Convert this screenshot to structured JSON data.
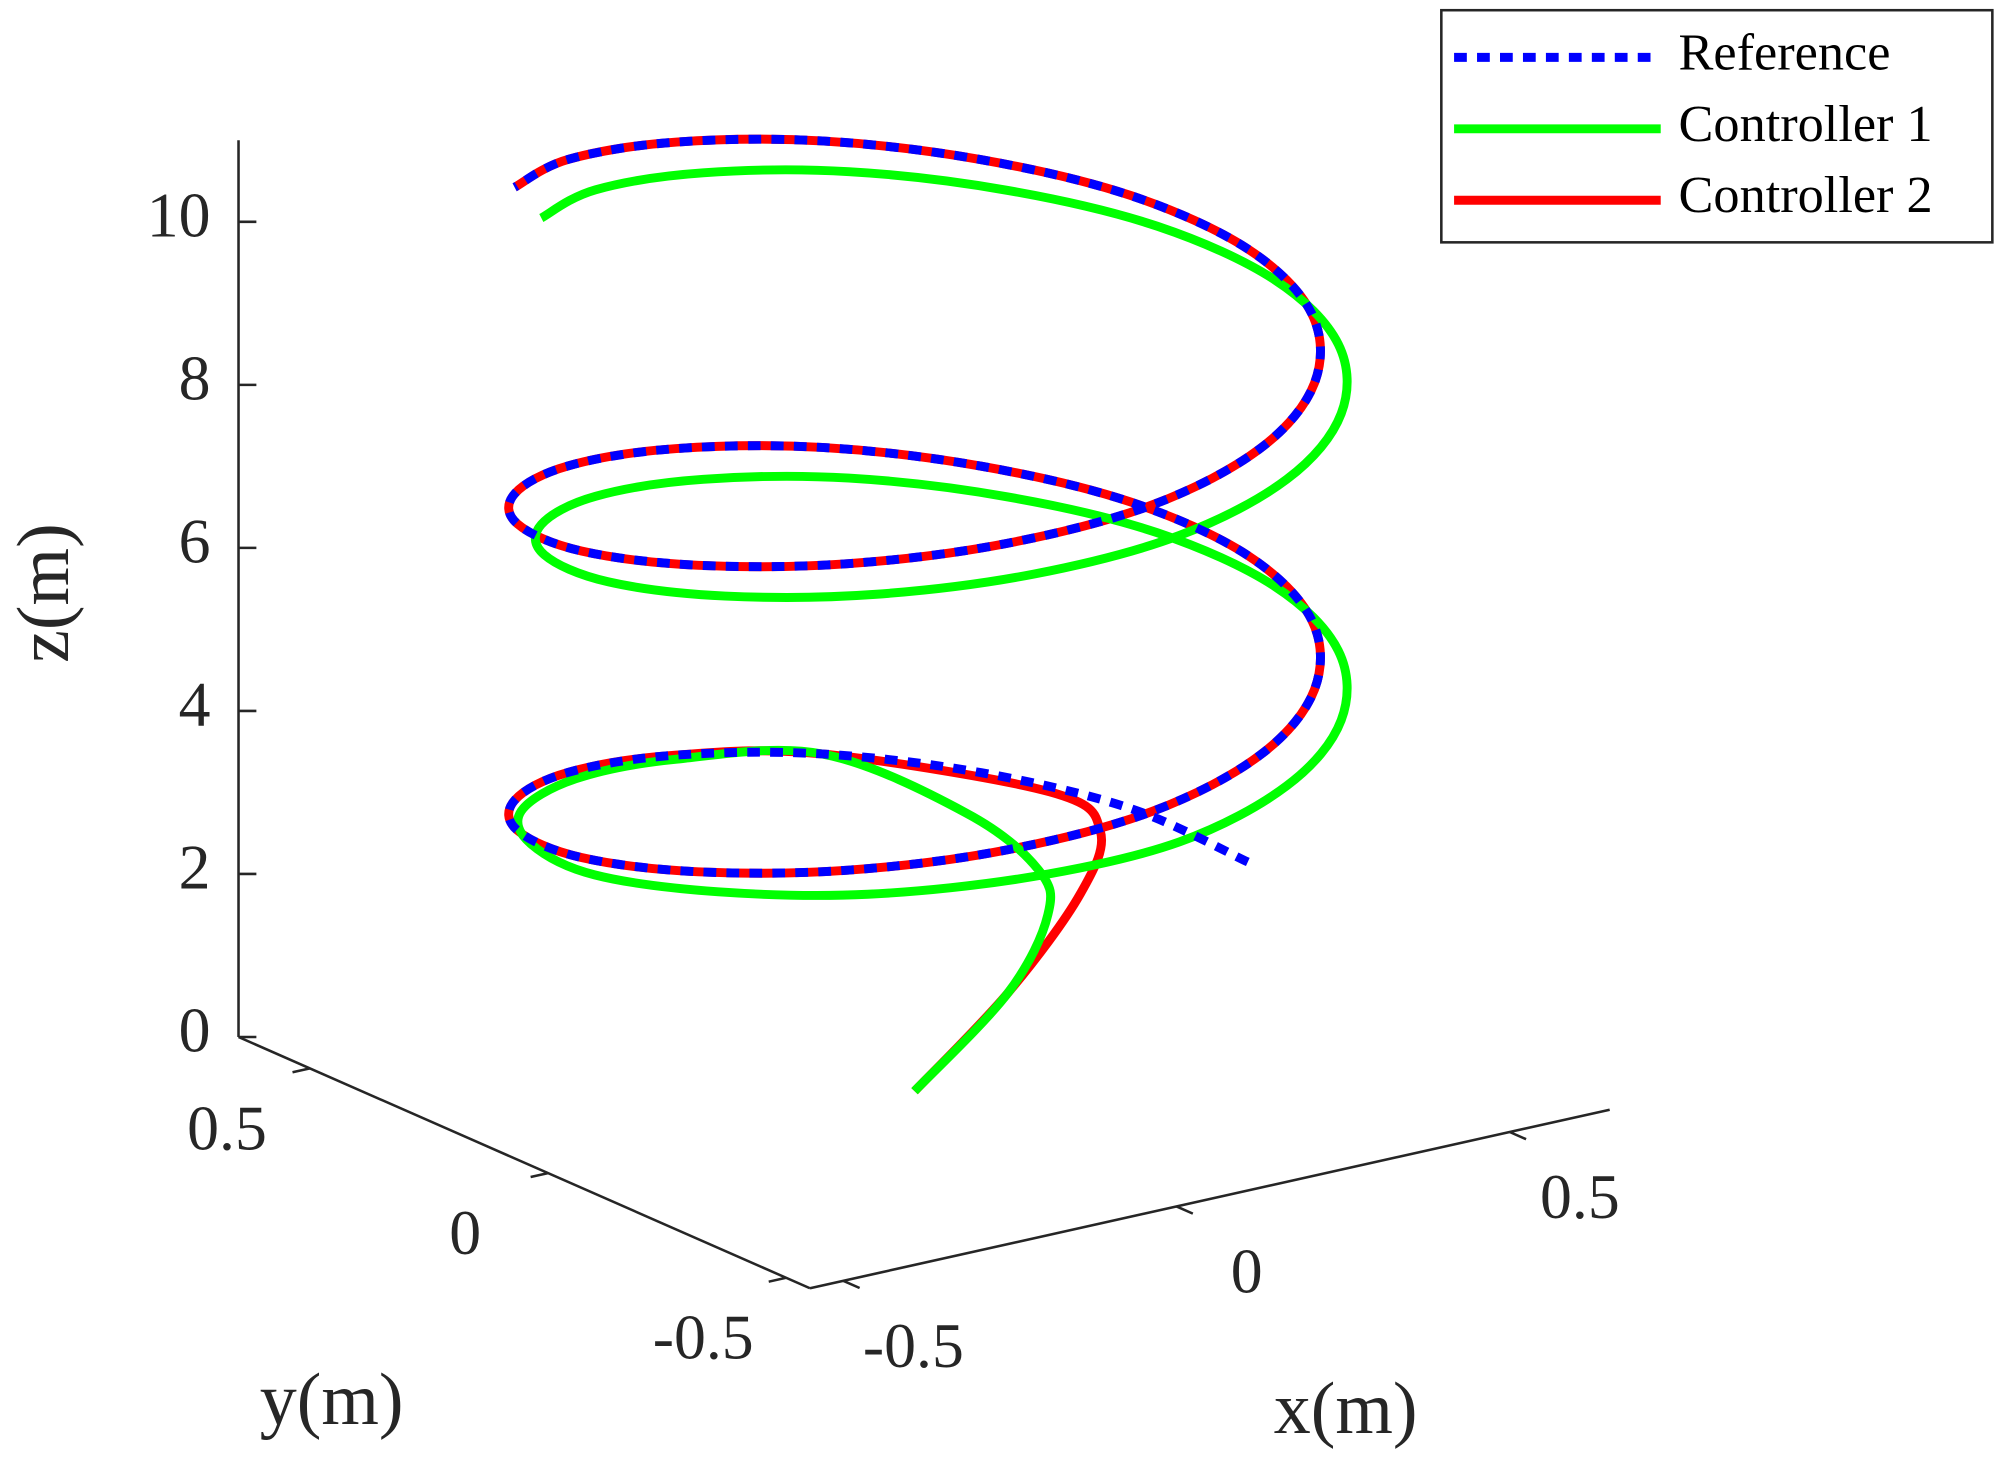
{
  "chart_data": {
    "type": "line3d",
    "xlabel": "x(m)",
    "ylabel": "y(m)",
    "zlabel": "z(m)",
    "xlim": [
      -0.55,
      0.65
    ],
    "ylim": [
      -0.55,
      0.65
    ],
    "zlim": [
      0,
      11
    ],
    "xticks": [
      -0.5,
      0,
      0.5
    ],
    "yticks": [
      -0.5,
      0,
      0.5
    ],
    "zticks": [
      0,
      2,
      4,
      6,
      8,
      10
    ],
    "grid": false,
    "legend": "northeast",
    "series": [
      {
        "name": "Reference",
        "color": "#0000ff",
        "linestyle": "dotted",
        "x": [
          0.5,
          0.46,
          0.35,
          0.19,
          0,
          -0.19,
          -0.35,
          -0.46,
          -0.5,
          -0.46,
          -0.35,
          -0.19,
          0,
          0.19,
          0.35,
          0.46,
          0.5,
          0.46,
          0.35,
          0.19,
          0,
          -0.19,
          -0.35,
          -0.46,
          -0.5,
          -0.46,
          -0.35,
          -0.19,
          0,
          0.19,
          0.35,
          0.46,
          0.5,
          0.46,
          0.35,
          0.19,
          0,
          -0.19,
          -0.35
        ],
        "y": [
          0,
          0.19,
          0.35,
          0.46,
          0.5,
          0.46,
          0.35,
          0.19,
          0,
          -0.19,
          -0.35,
          -0.46,
          -0.5,
          -0.46,
          -0.35,
          -0.19,
          0,
          0.19,
          0.35,
          0.46,
          0.5,
          0.46,
          0.35,
          0.19,
          0,
          -0.19,
          -0.35,
          -0.46,
          -0.5,
          -0.46,
          -0.35,
          -0.19,
          0,
          0.19,
          0.35,
          0.46,
          0.5,
          0.46,
          0.35
        ],
        "z": [
          1.9,
          2.14,
          2.37,
          2.61,
          2.84,
          3.08,
          3.31,
          3.55,
          3.78,
          4.02,
          4.25,
          4.49,
          4.72,
          4.96,
          5.19,
          5.43,
          5.66,
          5.9,
          6.13,
          6.37,
          6.6,
          6.84,
          7.07,
          7.31,
          7.54,
          7.78,
          8.01,
          8.25,
          8.48,
          8.72,
          8.95,
          9.19,
          9.42,
          9.66,
          9.89,
          10.13,
          10.36,
          10.6,
          10.83
        ]
      },
      {
        "name": "Controller 1",
        "color": "#00ff00",
        "linestyle": "solid",
        "x": [
          0,
          0.14,
          0.2,
          0.2,
          0.22,
          0.19,
          0,
          -0.18,
          -0.34,
          -0.44,
          -0.48,
          -0.43,
          -0.32,
          -0.15,
          0.04,
          0.23,
          0.39,
          0.5,
          0.54,
          0.5,
          0.39,
          0.23,
          0.04,
          -0.15,
          -0.31,
          -0.42,
          -0.46,
          -0.42,
          -0.31,
          -0.15,
          0.04,
          0.23,
          0.39,
          0.5,
          0.54,
          0.5,
          0.39,
          0.23,
          0.04,
          -0.15,
          -0.31
        ],
        "y": [
          0,
          0,
          0,
          0.02,
          0.2,
          0.46,
          0.5,
          0.46,
          0.35,
          0.19,
          0,
          -0.19,
          -0.35,
          -0.46,
          -0.5,
          -0.46,
          -0.35,
          -0.19,
          0,
          0.19,
          0.35,
          0.46,
          0.5,
          0.46,
          0.35,
          0.19,
          0,
          -0.19,
          -0.35,
          -0.46,
          -0.5,
          -0.46,
          -0.35,
          -0.19,
          0,
          0.19,
          0.35,
          0.46,
          0.5,
          0.46,
          0.35
        ],
        "z": [
          0,
          0.95,
          1.8,
          2.3,
          2.5,
          2.61,
          2.79,
          2.98,
          3.16,
          3.35,
          3.53,
          3.72,
          3.9,
          4.09,
          4.27,
          4.51,
          4.74,
          4.98,
          5.21,
          5.45,
          5.68,
          5.92,
          6.15,
          6.39,
          6.62,
          6.86,
          7.09,
          7.33,
          7.56,
          7.8,
          8.03,
          8.27,
          8.5,
          8.74,
          8.97,
          9.21,
          9.44,
          9.68,
          9.91,
          10.15,
          10.38
        ]
      },
      {
        "name": "Controller 2",
        "color": "#ff0000",
        "linestyle": "solid",
        "x": [
          0,
          0.14,
          0.27,
          0.35,
          0.36,
          0.19,
          0,
          -0.19,
          -0.35,
          -0.46,
          -0.5,
          -0.46,
          -0.35,
          -0.19,
          0,
          0.19,
          0.35,
          0.46,
          0.5,
          0.46,
          0.35,
          0.19,
          0,
          -0.19,
          -0.35,
          -0.46,
          -0.5,
          -0.46,
          -0.35,
          -0.19,
          0,
          0.19,
          0.35,
          0.46,
          0.5,
          0.46,
          0.35,
          0.19,
          0,
          -0.19,
          -0.35
        ],
        "y": [
          0,
          0,
          0.03,
          0.1,
          0.22,
          0.46,
          0.5,
          0.46,
          0.35,
          0.19,
          0,
          -0.19,
          -0.35,
          -0.46,
          -0.5,
          -0.46,
          -0.35,
          -0.19,
          0,
          0.19,
          0.35,
          0.46,
          0.5,
          0.46,
          0.35,
          0.19,
          0,
          -0.19,
          -0.35,
          -0.46,
          -0.5,
          -0.46,
          -0.35,
          -0.19,
          0,
          0.19,
          0.35,
          0.46,
          0.5,
          0.46,
          0.35
        ],
        "z": [
          0,
          0.95,
          1.85,
          2.3,
          2.45,
          2.61,
          2.84,
          3.08,
          3.31,
          3.55,
          3.78,
          4.02,
          4.25,
          4.49,
          4.72,
          4.96,
          5.19,
          5.43,
          5.66,
          5.9,
          6.13,
          6.37,
          6.6,
          6.84,
          7.07,
          7.31,
          7.54,
          7.78,
          8.01,
          8.25,
          8.48,
          8.72,
          8.95,
          9.19,
          9.42,
          9.66,
          9.89,
          10.13,
          10.36,
          10.6,
          10.83
        ]
      }
    ]
  }
}
